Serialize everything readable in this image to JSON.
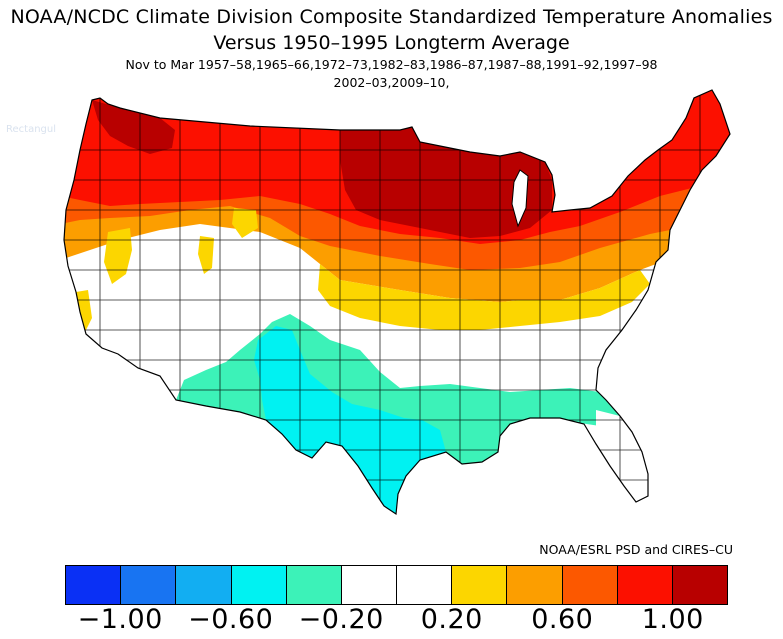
{
  "title": {
    "line1": "NOAA/NCDC Climate Division Composite Standardized Temperature Anomalies",
    "line2": "Versus 1950–1995 Longterm Average",
    "line3": "Nov to Mar  1957–58,1965–66,1972–73,1982–83,1986–87,1987–88,1991–92,1997–98",
    "line4": "2002–03,2009–10,"
  },
  "overlay_label": "Rectangul",
  "credit": "NOAA/ESRL PSD and CIRES–CU",
  "colorbar": {
    "colors": [
      "#0a30f5",
      "#1874f2",
      "#12aef2",
      "#00f2f2",
      "#3cf2b8",
      "#ffffff",
      "#ffffff",
      "#fcd600",
      "#fc9e00",
      "#fc5800",
      "#fc1000",
      "#b80000"
    ],
    "tick_labels": [
      "−1.00",
      "−0.60",
      "−0.20",
      "0.20",
      "0.60",
      "1.00"
    ]
  },
  "map_colors": {
    "dark_red": "#b80000",
    "red": "#fc1000",
    "red_orange": "#fc5800",
    "orange": "#fc9e00",
    "yellow": "#fcd600",
    "white": "#ffffff",
    "aquamarine": "#3cf2b8",
    "cyan": "#00f2f2"
  }
}
